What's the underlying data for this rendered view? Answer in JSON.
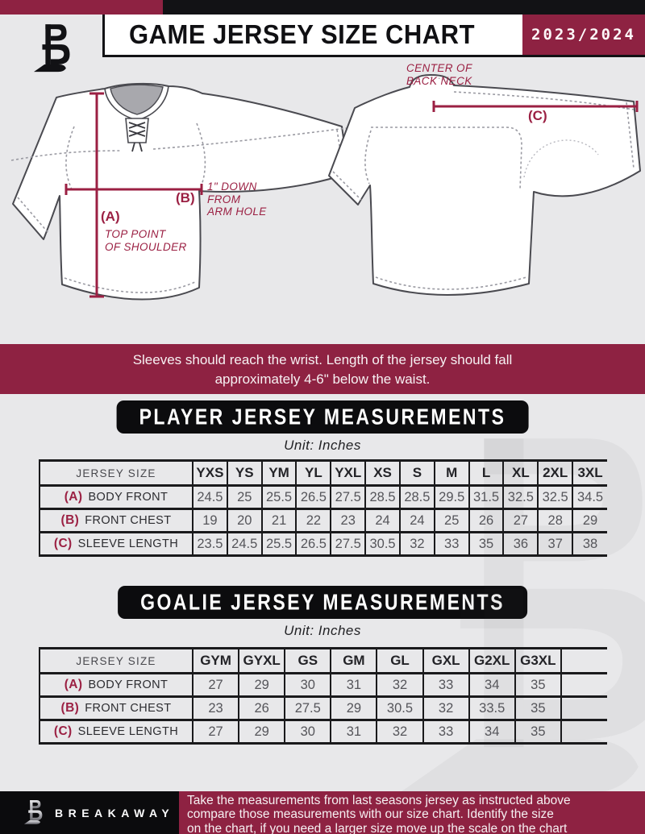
{
  "header": {
    "title": "GAME JERSEY SIZE CHART",
    "season": "2023/2024"
  },
  "diagram": {
    "front": {
      "a_label": "(A)",
      "a_note_line1": "TOP POINT",
      "a_note_line2": "OF SHOULDER",
      "b_label": "(B)",
      "b_note_line1": "1\" DOWN",
      "b_note_line2": "FROM",
      "b_note_line3": "ARM HOLE"
    },
    "back": {
      "c_label": "(C)",
      "c_note_line1": "CENTER OF",
      "c_note_line2": "BACK NECK"
    }
  },
  "banner": {
    "line1": "Sleeves should reach the wrist. Length of the jersey should fall",
    "line2": "approximately 4-6\" below the waist."
  },
  "player_section": {
    "heading": "PLAYER JERSEY MEASUREMENTS",
    "unit": "Unit: Inches",
    "table": {
      "corner_label": "JERSEY SIZE",
      "sizes": [
        "YXS",
        "YS",
        "YM",
        "YL",
        "YXL",
        "XS",
        "S",
        "M",
        "L",
        "XL",
        "2XL",
        "3XL"
      ],
      "rows": [
        {
          "key": "(A)",
          "label": "BODY FRONT",
          "values": [
            "24.5",
            "25",
            "25.5",
            "26.5",
            "27.5",
            "28.5",
            "28.5",
            "29.5",
            "31.5",
            "32.5",
            "32.5",
            "34.5"
          ]
        },
        {
          "key": "(B)",
          "label": "FRONT CHEST",
          "values": [
            "19",
            "20",
            "21",
            "22",
            "23",
            "24",
            "24",
            "25",
            "26",
            "27",
            "28",
            "29"
          ]
        },
        {
          "key": "(C)",
          "label": "SLEEVE LENGTH",
          "values": [
            "23.5",
            "24.5",
            "25.5",
            "26.5",
            "27.5",
            "30.5",
            "32",
            "33",
            "35",
            "36",
            "37",
            "38"
          ]
        }
      ]
    }
  },
  "goalie_section": {
    "heading": "GOALIE JERSEY MEASUREMENTS",
    "unit": "Unit: Inches",
    "table": {
      "corner_label": "JERSEY SIZE",
      "sizes": [
        "GYM",
        "GYXL",
        "GS",
        "GM",
        "GL",
        "GXL",
        "G2XL",
        "G3XL",
        ""
      ],
      "rows": [
        {
          "key": "(A)",
          "label": "BODY FRONT",
          "values": [
            "27",
            "29",
            "30",
            "31",
            "32",
            "33",
            "34",
            "35",
            ""
          ]
        },
        {
          "key": "(B)",
          "label": "FRONT CHEST",
          "values": [
            "23",
            "26",
            "27.5",
            "29",
            "30.5",
            "32",
            "33.5",
            "35",
            ""
          ]
        },
        {
          "key": "(C)",
          "label": "SLEEVE LENGTH",
          "values": [
            "27",
            "29",
            "30",
            "31",
            "32",
            "33",
            "34",
            "35",
            ""
          ]
        }
      ]
    }
  },
  "footer": {
    "brand": "BREAKAWAY",
    "note_line1": "Take the measurements from last seasons jersey as instructed above",
    "note_line2": "compare those measurements  with our size chart. Identify the size",
    "note_line3": "on the chart, if you need a larger size move up the scale on the chart"
  },
  "colors": {
    "crimson": "#8e2242",
    "crimson_bright": "#9b2043",
    "page_bg": "#e8e8ea",
    "ink": "#121215"
  }
}
